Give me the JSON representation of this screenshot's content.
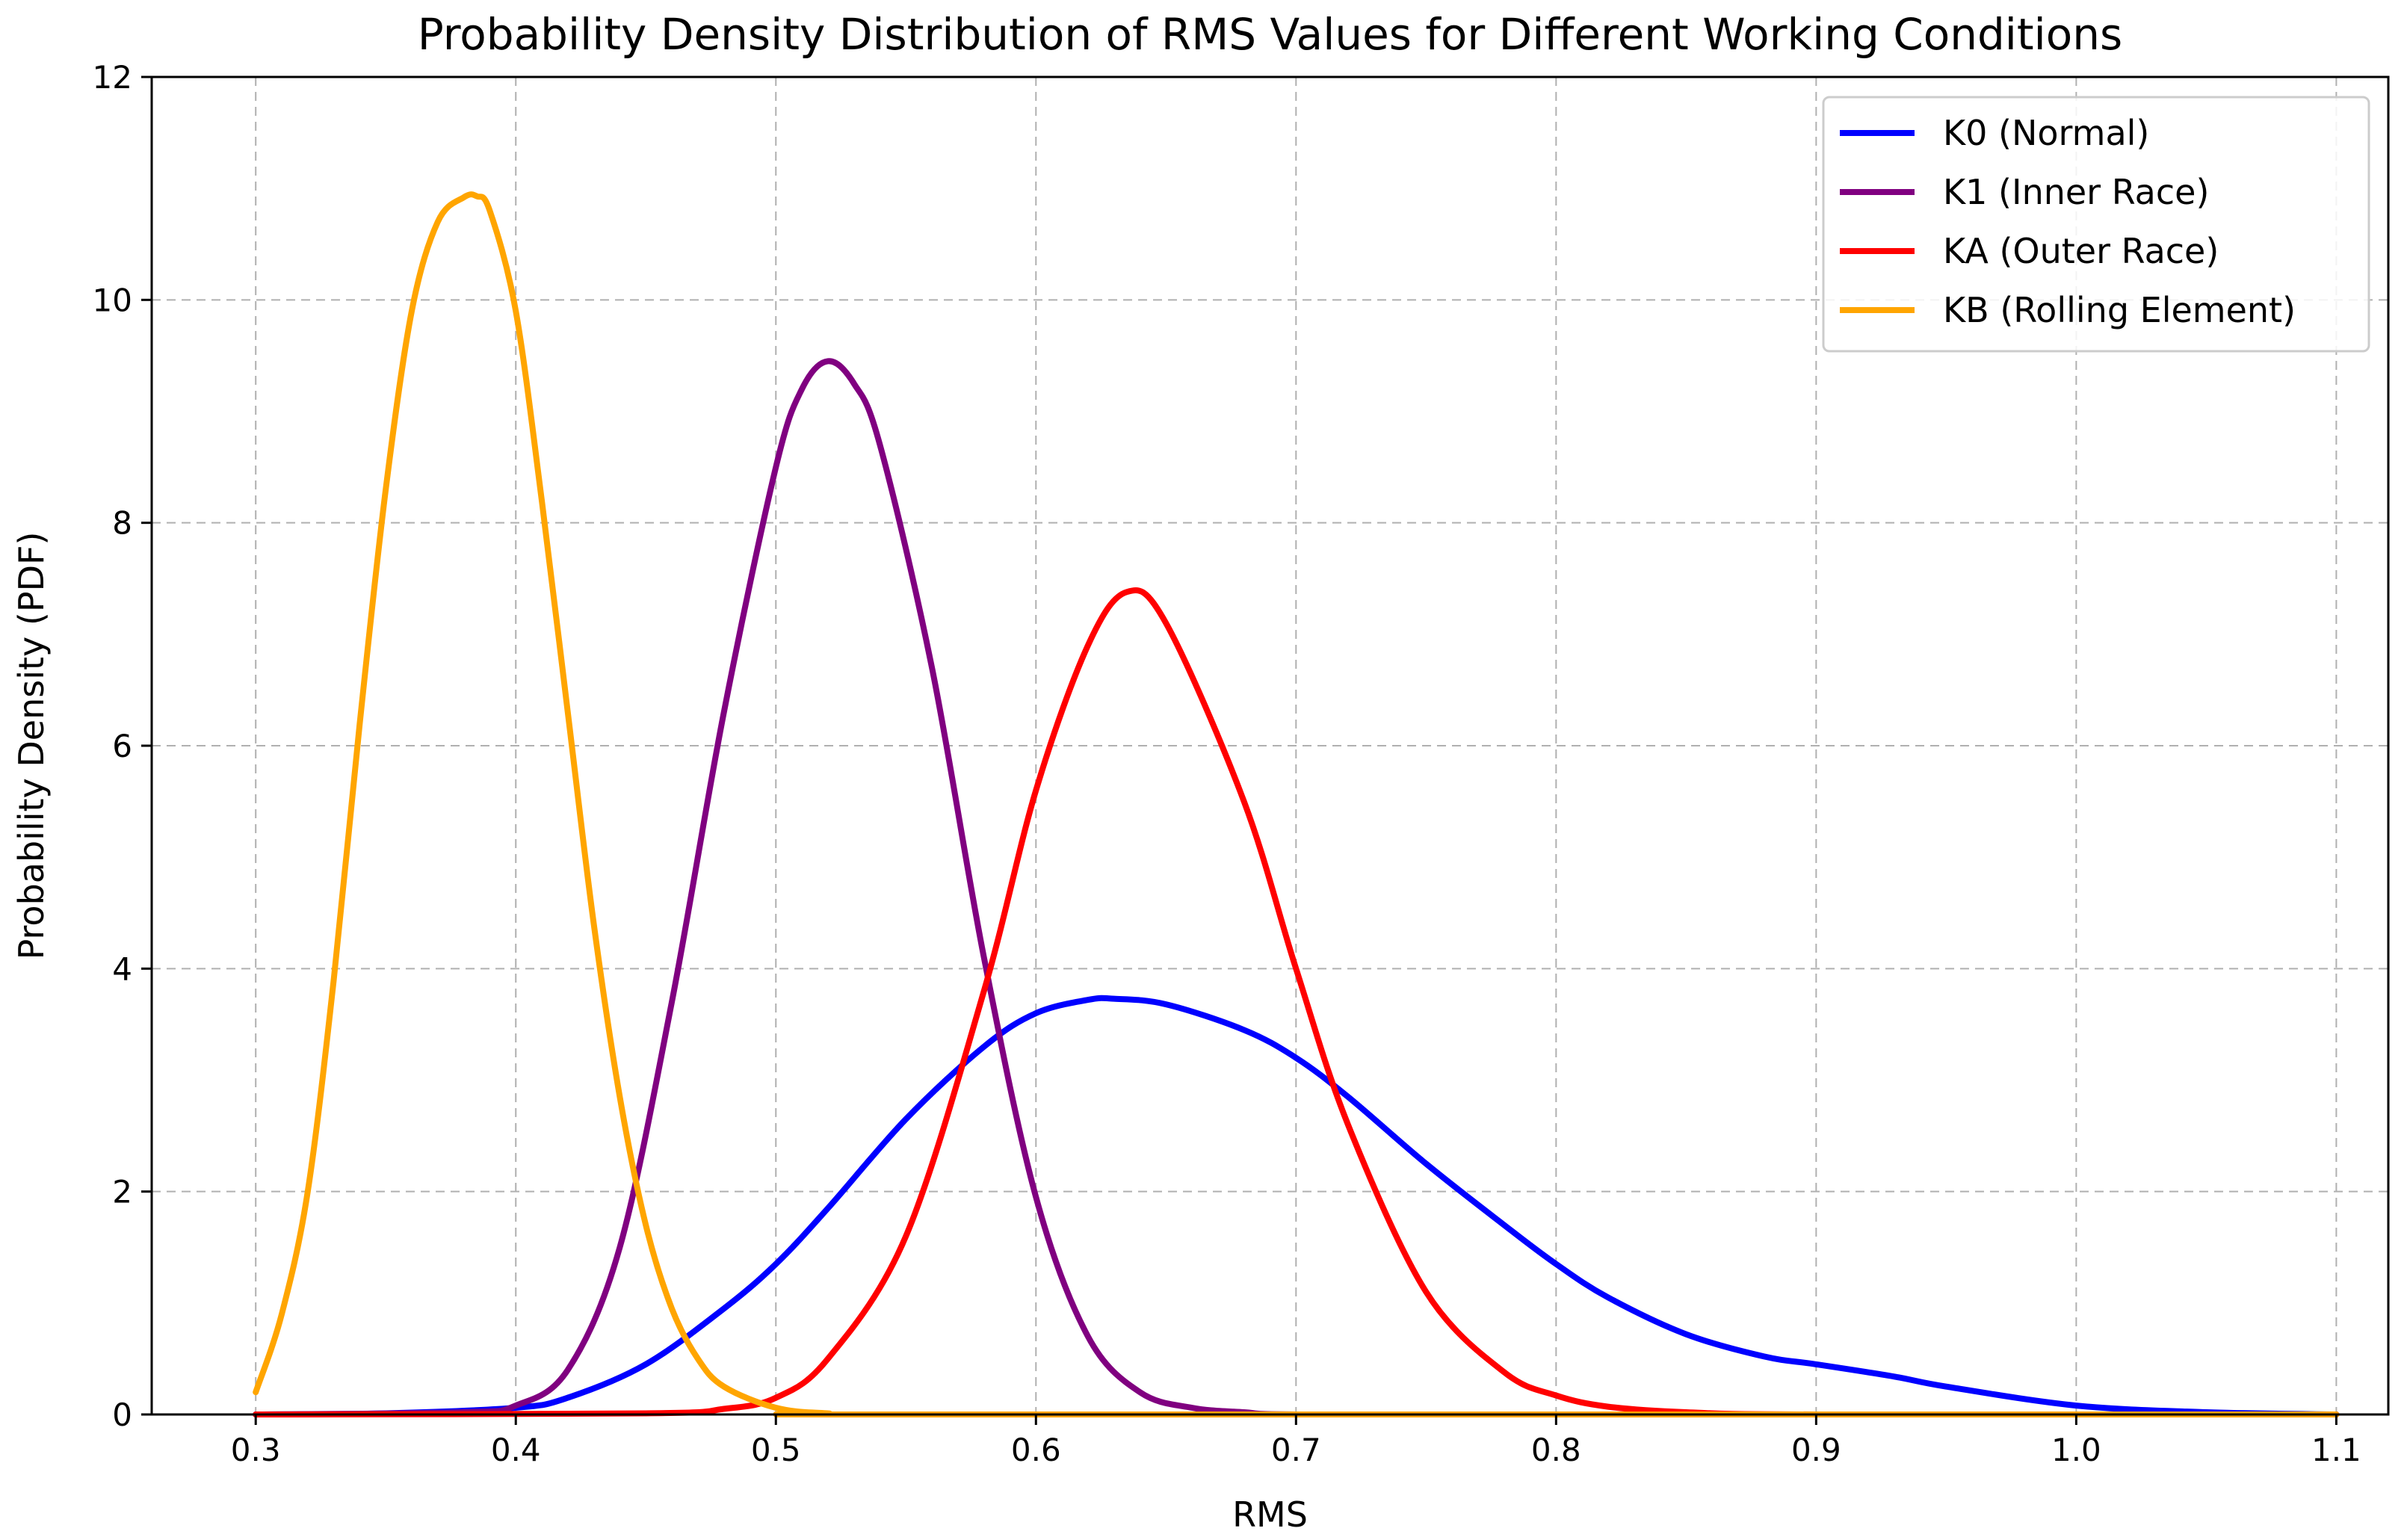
{
  "chart_data": {
    "type": "line",
    "title": "Probability Density Distribution of RMS Values for Different Working Conditions",
    "xlabel": "RMS",
    "ylabel": "Probability Density (PDF)",
    "xlim": [
      0.26,
      1.12
    ],
    "ylim": [
      0,
      12
    ],
    "xticks": [
      "0.3",
      "0.4",
      "0.5",
      "0.6",
      "0.7",
      "0.8",
      "0.9",
      "1.0",
      "1.1"
    ],
    "yticks": [
      "0",
      "2",
      "4",
      "6",
      "8",
      "10",
      "12"
    ],
    "grid": true,
    "legend_position": "top-right",
    "series": [
      {
        "name": "K0 (Normal)",
        "color": "#0000ff",
        "x": [
          0.3,
          0.35,
          0.4,
          0.42,
          0.45,
          0.48,
          0.5,
          0.52,
          0.55,
          0.58,
          0.6,
          0.62,
          0.63,
          0.65,
          0.68,
          0.7,
          0.72,
          0.75,
          0.78,
          0.8,
          0.82,
          0.85,
          0.88,
          0.9,
          0.93,
          0.95,
          1.0,
          1.05,
          1.1
        ],
        "y": [
          0.0,
          0.01,
          0.06,
          0.15,
          0.45,
          0.95,
          1.35,
          1.85,
          2.65,
          3.3,
          3.6,
          3.72,
          3.73,
          3.68,
          3.45,
          3.2,
          2.85,
          2.25,
          1.7,
          1.35,
          1.05,
          0.72,
          0.52,
          0.45,
          0.34,
          0.25,
          0.08,
          0.02,
          0.0
        ]
      },
      {
        "name": "K1 (Inner Race)",
        "color": "#800080",
        "x": [
          0.3,
          0.38,
          0.4,
          0.42,
          0.44,
          0.46,
          0.48,
          0.5,
          0.51,
          0.52,
          0.53,
          0.54,
          0.56,
          0.58,
          0.6,
          0.62,
          0.64,
          0.66,
          0.68,
          0.7,
          0.8,
          1.1
        ],
        "y": [
          0.0,
          0.02,
          0.08,
          0.4,
          1.5,
          3.7,
          6.3,
          8.5,
          9.2,
          9.45,
          9.25,
          8.7,
          6.7,
          4.1,
          1.95,
          0.7,
          0.2,
          0.06,
          0.02,
          0.0,
          0.0,
          0.0
        ]
      },
      {
        "name": "KA (Outer Race)",
        "color": "#ff0000",
        "x": [
          0.3,
          0.45,
          0.48,
          0.5,
          0.52,
          0.55,
          0.58,
          0.6,
          0.62,
          0.635,
          0.65,
          0.68,
          0.7,
          0.72,
          0.75,
          0.78,
          0.8,
          0.82,
          0.85,
          0.9,
          1.1
        ],
        "y": [
          0.0,
          0.01,
          0.05,
          0.15,
          0.5,
          1.6,
          3.8,
          5.6,
          6.9,
          7.38,
          7.1,
          5.5,
          4.0,
          2.6,
          1.1,
          0.38,
          0.17,
          0.07,
          0.02,
          0.0,
          0.0
        ]
      },
      {
        "name": "KB (Rolling Element)",
        "color": "#ffa500",
        "x": [
          0.3,
          0.31,
          0.32,
          0.33,
          0.34,
          0.35,
          0.36,
          0.37,
          0.38,
          0.385,
          0.39,
          0.4,
          0.41,
          0.42,
          0.43,
          0.44,
          0.45,
          0.46,
          0.47,
          0.48,
          0.5,
          0.52,
          0.55,
          1.1
        ],
        "y": [
          0.2,
          0.9,
          2.0,
          3.9,
          6.2,
          8.3,
          9.9,
          10.7,
          10.92,
          10.93,
          10.8,
          9.9,
          8.2,
          6.3,
          4.4,
          2.85,
          1.7,
          0.95,
          0.5,
          0.25,
          0.06,
          0.01,
          0.0,
          0.0
        ]
      }
    ]
  }
}
